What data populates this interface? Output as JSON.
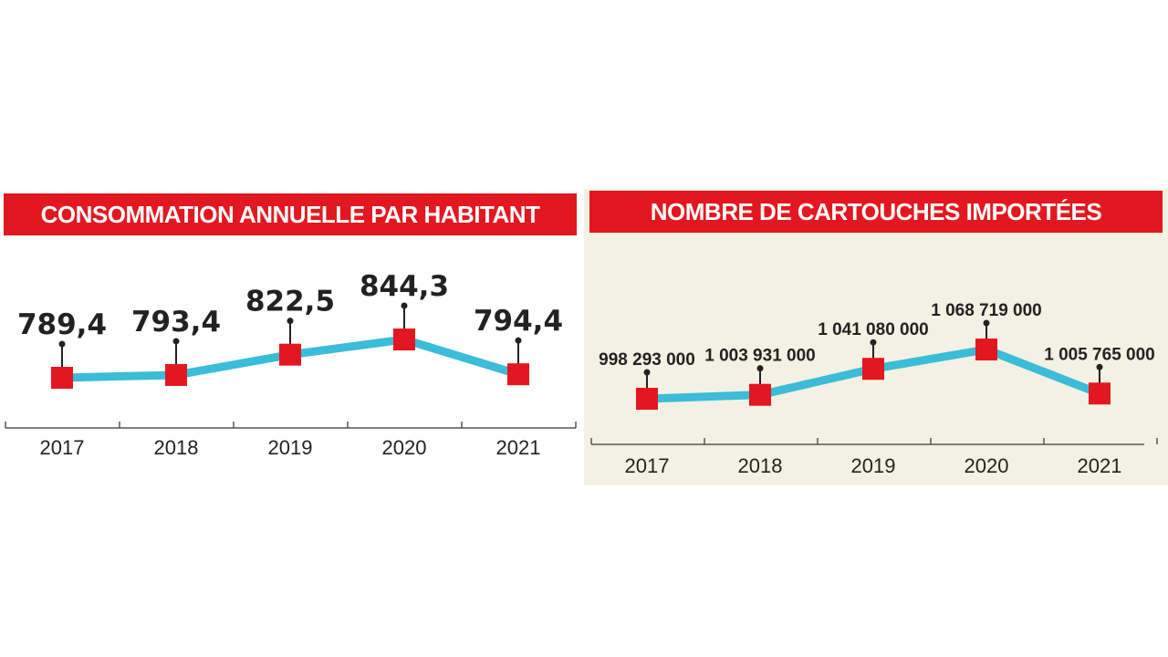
{
  "chart_data": [
    {
      "type": "line",
      "title": "CONSOMMATION ANNUELLE PAR HABITANT",
      "categories": [
        "2017",
        "2018",
        "2019",
        "2020",
        "2021"
      ],
      "values": [
        789.4,
        793.4,
        822.5,
        844.3,
        794.4
      ],
      "value_labels": [
        "789,4",
        "793,4",
        "822,5",
        "844,3",
        "794,4"
      ],
      "xlabel": "",
      "ylabel": "",
      "grid": false,
      "colors": {
        "line": "#3bbcd8",
        "marker": "#e3171f",
        "title_bg": "#e3171f",
        "title_text": "#ffffff"
      }
    },
    {
      "type": "line",
      "title": "NOMBRE DE CARTOUCHES IMPORTÉES",
      "categories": [
        "2017",
        "2018",
        "2019",
        "2020",
        "2021"
      ],
      "values": [
        998293000,
        1003931000,
        1041080000,
        1068719000,
        1005765000
      ],
      "value_labels": [
        "998 293 000",
        "1 003 931 000",
        "1 041 080 000",
        "1 068 719 000",
        "1 005 765 000"
      ],
      "xlabel": "",
      "ylabel": "",
      "grid": false,
      "colors": {
        "line": "#3bbcd8",
        "marker": "#e3171f",
        "title_bg": "#e3171f",
        "title_text": "#ffffff",
        "panel_bg": "#f3f1e3"
      }
    }
  ]
}
